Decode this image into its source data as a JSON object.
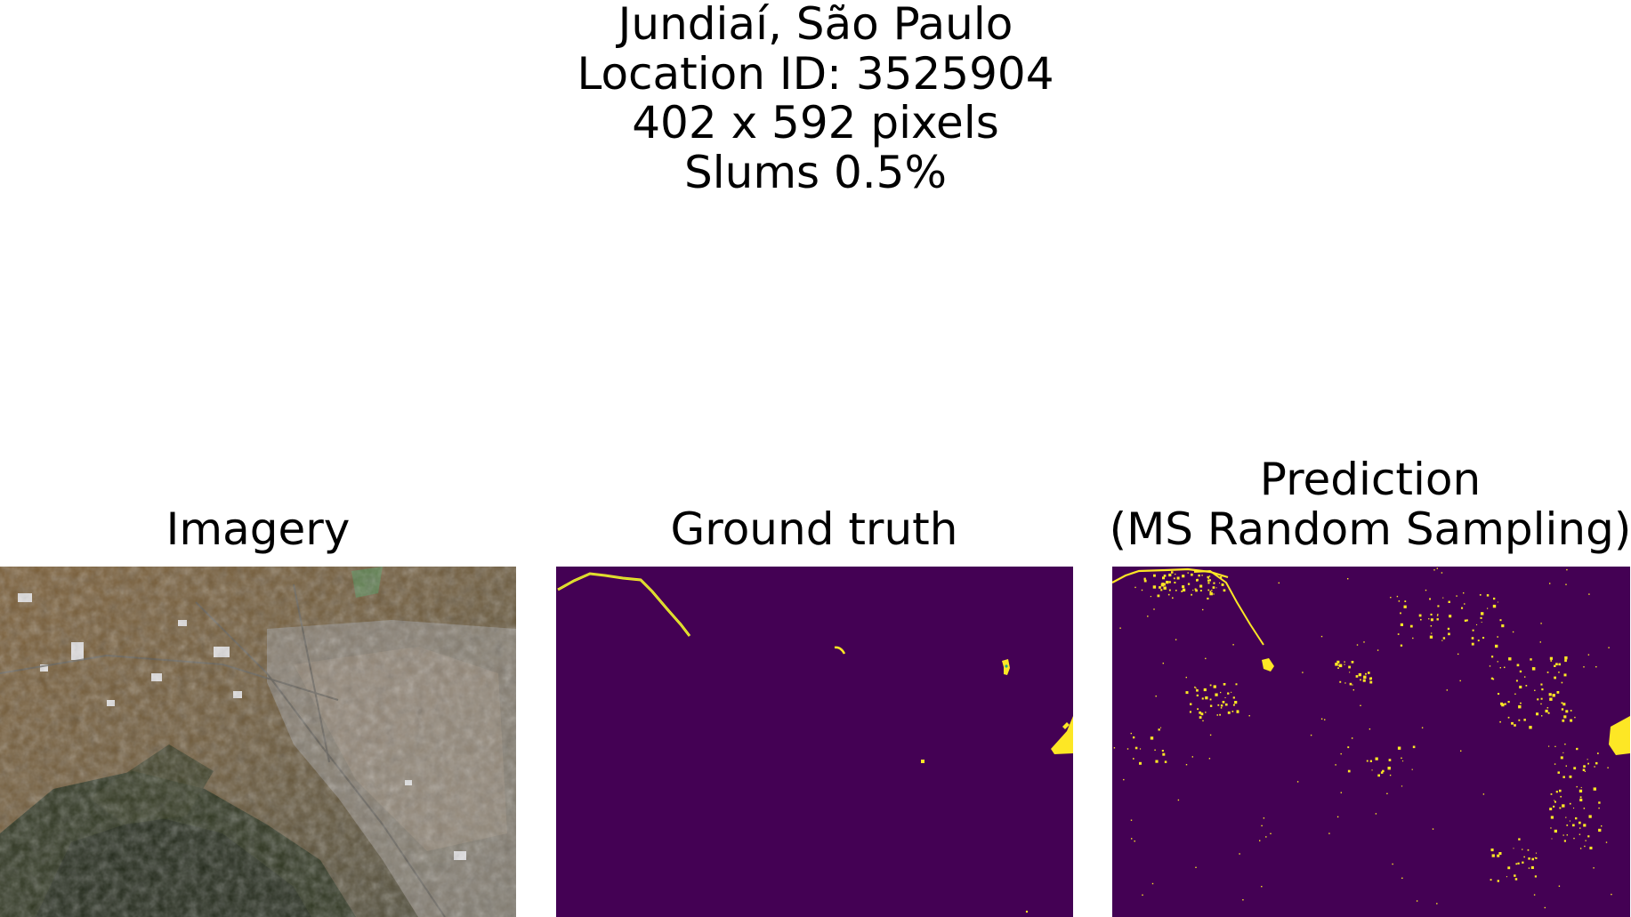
{
  "figure": {
    "title_lines": [
      "Jundiaí, São Paulo",
      "Location ID: 3525904",
      "402 x 592 pixels",
      "Slums 0.5%"
    ]
  },
  "panels": [
    {
      "title_lines": [
        "Imagery"
      ],
      "content": "satellite-imagery"
    },
    {
      "title_lines": [
        "Ground truth"
      ],
      "content": "slum-mask",
      "colors": {
        "background": "#440154",
        "foreground": "#fde725"
      }
    },
    {
      "title_lines": [
        "Prediction",
        "(MS Random Sampling)"
      ],
      "content": "slum-prediction-mask",
      "colors": {
        "background": "#440154",
        "foreground": "#fde725"
      }
    }
  ]
}
